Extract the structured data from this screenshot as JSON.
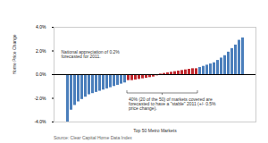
{
  "chart_data": {
    "type": "bar",
    "y_label": "Home Price Change",
    "x_label": "Top 50 Metro Markets",
    "source": "Source: Clear Capital Home Data Index",
    "annotations": [
      "National appreciation of 0.2% forecasted for 2011.",
      "40% (20 of the 50) of markets covered are forecasted to have a \"stable\" 2011 (+/- 0.5% price change)."
    ],
    "categories": [
      null,
      null,
      null,
      null,
      null,
      null,
      null,
      null,
      null,
      null,
      null,
      null,
      null,
      null,
      null,
      null,
      null,
      null,
      null,
      null,
      null,
      null,
      null,
      null,
      null,
      null,
      null,
      null,
      null,
      null,
      null,
      null,
      null,
      null,
      null,
      null,
      null,
      null,
      null,
      null,
      null,
      null,
      null,
      null,
      null,
      null,
      null,
      null,
      null,
      null
    ],
    "values": [
      -4.0,
      -3.0,
      -2.6,
      -2.3,
      -2.1,
      -1.9,
      -1.7,
      -1.6,
      -1.5,
      -1.4,
      -1.3,
      -1.2,
      -1.1,
      -1.0,
      -0.9,
      -0.8,
      -0.7,
      -0.5,
      -0.5,
      -0.45,
      -0.4,
      -0.35,
      -0.3,
      -0.25,
      -0.2,
      -0.1,
      0.05,
      0.1,
      0.15,
      0.2,
      0.25,
      0.3,
      0.35,
      0.4,
      0.45,
      0.5,
      0.5,
      0.6,
      0.7,
      0.8,
      0.9,
      1.0,
      1.2,
      1.4,
      1.6,
      1.9,
      2.2,
      2.5,
      2.9,
      3.1
    ],
    "colors": [
      "#4a7ebb",
      "#4a7ebb",
      "#4a7ebb",
      "#4a7ebb",
      "#4a7ebb",
      "#4a7ebb",
      "#4a7ebb",
      "#4a7ebb",
      "#4a7ebb",
      "#4a7ebb",
      "#4a7ebb",
      "#4a7ebb",
      "#4a7ebb",
      "#4a7ebb",
      "#4a7ebb",
      "#4a7ebb",
      "#4a7ebb",
      "#c0272d",
      "#c0272d",
      "#c0272d",
      "#c0272d",
      "#c0272d",
      "#c0272d",
      "#c0272d",
      "#c0272d",
      "#c0272d",
      "#c0272d",
      "#c0272d",
      "#c0272d",
      "#c0272d",
      "#c0272d",
      "#c0272d",
      "#c0272d",
      "#c0272d",
      "#c0272d",
      "#c0272d",
      "#c0272d",
      "#4a7ebb",
      "#4a7ebb",
      "#4a7ebb",
      "#4a7ebb",
      "#4a7ebb",
      "#4a7ebb",
      "#4a7ebb",
      "#4a7ebb",
      "#4a7ebb",
      "#4a7ebb",
      "#4a7ebb",
      "#4a7ebb",
      "#4a7ebb"
    ],
    "ylim": [
      -4,
      4
    ],
    "yticks": [
      {
        "value": -4,
        "label": "-4.0%"
      },
      {
        "value": -2,
        "label": "-2.0%"
      },
      {
        "value": 0,
        "label": "0.0%"
      },
      {
        "value": 2,
        "label": "2.0%"
      },
      {
        "value": 4,
        "label": "4.0%"
      }
    ],
    "grid": false,
    "tick_labels": "y"
  }
}
